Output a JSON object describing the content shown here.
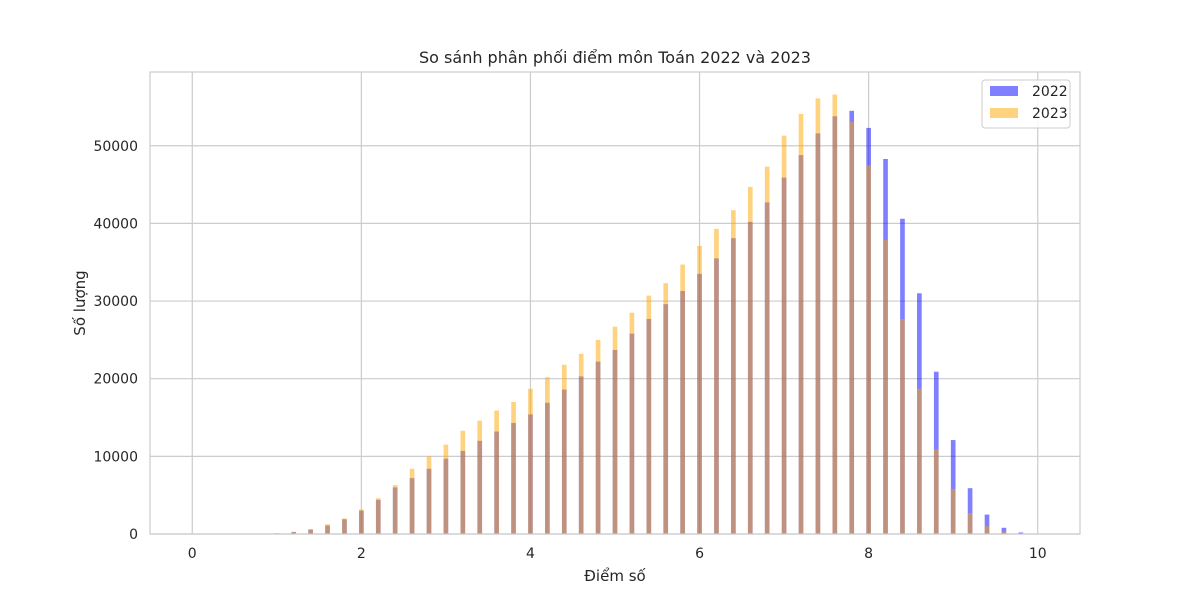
{
  "chart_data": {
    "type": "bar",
    "title": "So sánh phân phối điểm môn Toán 2022 và 2023",
    "xlabel": "Điểm số",
    "ylabel": "Số lượng",
    "xlim": [
      -0.5,
      10.5
    ],
    "ylim": [
      0,
      59500
    ],
    "xticks": [
      0,
      2,
      4,
      6,
      8,
      10
    ],
    "yticks": [
      0,
      10000,
      20000,
      30000,
      40000,
      50000
    ],
    "grid": true,
    "legend_position": "top-right",
    "x": [
      1.0,
      1.2,
      1.4,
      1.6,
      1.8,
      2.0,
      2.2,
      2.4,
      2.6,
      2.8,
      3.0,
      3.2,
      3.4,
      3.6,
      3.8,
      4.0,
      4.2,
      4.4,
      4.6,
      4.8,
      5.0,
      5.2,
      5.4,
      5.6,
      5.8,
      6.0,
      6.2,
      6.4,
      6.6,
      6.8,
      7.0,
      7.2,
      7.4,
      7.6,
      7.8,
      8.0,
      8.2,
      8.4,
      8.6,
      8.8,
      9.0,
      9.2,
      9.4,
      9.6,
      9.8
    ],
    "series": [
      {
        "name": "2022",
        "color": "#0000ff",
        "opacity": 0.5,
        "values": [
          80,
          250,
          550,
          1100,
          1900,
          3000,
          4400,
          6000,
          7200,
          8400,
          9700,
          10700,
          12000,
          13200,
          14300,
          15400,
          16900,
          18600,
          20300,
          22200,
          23700,
          25800,
          27700,
          29600,
          31300,
          33500,
          35500,
          38100,
          40200,
          42700,
          45900,
          48800,
          51600,
          53800,
          54500,
          52300,
          48300,
          40600,
          31000,
          20900,
          12100,
          5900,
          2500,
          800,
          200
        ]
      },
      {
        "name": "2023",
        "color": "#ffa500",
        "opacity": 0.5,
        "values": [
          100,
          300,
          650,
          1250,
          2000,
          3150,
          4600,
          6300,
          8400,
          10000,
          11500,
          13300,
          14600,
          15900,
          17000,
          18700,
          20200,
          21800,
          23200,
          25000,
          26700,
          28500,
          30700,
          32300,
          34700,
          37100,
          39300,
          41700,
          44700,
          47300,
          51300,
          54100,
          56100,
          56600,
          53100,
          47500,
          37900,
          27700,
          18700,
          10900,
          5800,
          2700,
          1000,
          300,
          80
        ]
      }
    ]
  }
}
